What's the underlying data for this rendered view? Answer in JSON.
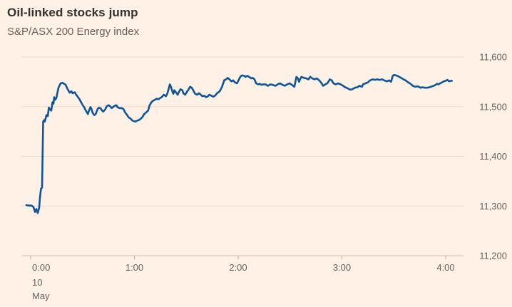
{
  "header": {
    "title": "Oil-linked stocks jump",
    "subtitle": "S&P/ASX 200 Energy index"
  },
  "colors": {
    "background": "#FFF1E5",
    "line": "#0F5499",
    "title_text": "#33302E",
    "subtitle_text": "#66605C",
    "axis_text": "#66605C",
    "gridline": "#E7DACF",
    "axis_line": "#D0C3B8",
    "tick_mark": "#B3AAA0"
  },
  "chart_data": {
    "type": "line",
    "title": "Oil-linked stocks jump",
    "subtitle": "S&P/ASX 200 Energy index",
    "grid": "horizontal",
    "legend": "none",
    "x_axis": {
      "tick_hours": [
        0,
        1,
        2,
        3,
        4
      ],
      "tick_labels": [
        "0:00",
        "1:00",
        "2:00",
        "3:00",
        "4:00"
      ],
      "date_label_lines": [
        "10",
        "May"
      ],
      "range_minutes": [
        -5,
        248
      ]
    },
    "y_axis": {
      "side": "right",
      "range": [
        11200,
        11600
      ],
      "ticks": [
        11200,
        11300,
        11400,
        11500,
        11600
      ],
      "tick_labels": [
        "11,200",
        "11,300",
        "11,400",
        "11,500",
        "11,600"
      ]
    },
    "series": [
      {
        "name": "S&P/ASX 200 Energy index",
        "points": [
          [
            -2.5,
            11302
          ],
          [
            -1.2,
            11301
          ],
          [
            0.4,
            11301
          ],
          [
            1.6,
            11298
          ],
          [
            2.5,
            11288
          ],
          [
            3.3,
            11294
          ],
          [
            4.1,
            11286
          ],
          [
            4.9,
            11296
          ],
          [
            5.3,
            11315
          ],
          [
            6.0,
            11335
          ],
          [
            6.6,
            11337
          ],
          [
            7.2,
            11470
          ],
          [
            7.8,
            11473
          ],
          [
            8.2,
            11470
          ],
          [
            9.1,
            11483
          ],
          [
            9.9,
            11481
          ],
          [
            10.5,
            11498
          ],
          [
            11.1,
            11495
          ],
          [
            11.9,
            11492
          ],
          [
            12.6,
            11509
          ],
          [
            13.2,
            11506
          ],
          [
            13.6,
            11519
          ],
          [
            14.2,
            11514
          ],
          [
            14.8,
            11517
          ],
          [
            16.1,
            11538
          ],
          [
            17.3,
            11547
          ],
          [
            18.5,
            11548
          ],
          [
            20.2,
            11544
          ],
          [
            21.4,
            11535
          ],
          [
            22.6,
            11528
          ],
          [
            23.5,
            11531
          ],
          [
            24.3,
            11527
          ],
          [
            25.5,
            11529
          ],
          [
            26.3,
            11524
          ],
          [
            27.0,
            11521
          ],
          [
            28.4,
            11514
          ],
          [
            29.6,
            11506
          ],
          [
            30.9,
            11499
          ],
          [
            32.1,
            11491
          ],
          [
            33.1,
            11485
          ],
          [
            33.7,
            11492
          ],
          [
            34.6,
            11499
          ],
          [
            35.2,
            11495
          ],
          [
            35.8,
            11488
          ],
          [
            36.8,
            11483
          ],
          [
            37.6,
            11485
          ],
          [
            38.7,
            11495
          ],
          [
            39.5,
            11498
          ],
          [
            40.3,
            11497
          ],
          [
            41.3,
            11492
          ],
          [
            42.0,
            11490
          ],
          [
            43.2,
            11495
          ],
          [
            44.0,
            11501
          ],
          [
            45.1,
            11503
          ],
          [
            45.9,
            11501
          ],
          [
            46.9,
            11497
          ],
          [
            48.6,
            11502
          ],
          [
            49.6,
            11503
          ],
          [
            50.2,
            11499
          ],
          [
            51.4,
            11497
          ],
          [
            52.7,
            11497
          ],
          [
            53.7,
            11495
          ],
          [
            54.7,
            11488
          ],
          [
            55.8,
            11483
          ],
          [
            56.8,
            11478
          ],
          [
            57.8,
            11476
          ],
          [
            58.8,
            11472
          ],
          [
            60.5,
            11470
          ],
          [
            61.7,
            11472
          ],
          [
            62.6,
            11473
          ],
          [
            63.8,
            11476
          ],
          [
            64.6,
            11479
          ],
          [
            65.6,
            11485
          ],
          [
            66.7,
            11488
          ],
          [
            67.9,
            11492
          ],
          [
            68.7,
            11502
          ],
          [
            69.8,
            11509
          ],
          [
            70.8,
            11512
          ],
          [
            72.0,
            11514
          ],
          [
            72.8,
            11516
          ],
          [
            73.9,
            11515
          ],
          [
            74.7,
            11517
          ],
          [
            75.7,
            11519
          ],
          [
            77.0,
            11524
          ],
          [
            78.2,
            11521
          ],
          [
            79.0,
            11526
          ],
          [
            80.5,
            11545
          ],
          [
            81.1,
            11540
          ],
          [
            81.9,
            11531
          ],
          [
            82.5,
            11526
          ],
          [
            83.1,
            11533
          ],
          [
            84.2,
            11528
          ],
          [
            85.0,
            11524
          ],
          [
            86.0,
            11531
          ],
          [
            86.6,
            11535
          ],
          [
            87.7,
            11533
          ],
          [
            88.3,
            11527
          ],
          [
            89.3,
            11524
          ],
          [
            90.6,
            11531
          ],
          [
            91.4,
            11535
          ],
          [
            92.2,
            11540
          ],
          [
            93.2,
            11538
          ],
          [
            94.3,
            11531
          ],
          [
            95.1,
            11526
          ],
          [
            96.3,
            11524
          ],
          [
            97.3,
            11527
          ],
          [
            98.4,
            11524
          ],
          [
            99.2,
            11521
          ],
          [
            100.4,
            11522
          ],
          [
            101.5,
            11519
          ],
          [
            102.5,
            11521
          ],
          [
            103.3,
            11524
          ],
          [
            104.5,
            11522
          ],
          [
            105.6,
            11520
          ],
          [
            106.6,
            11522
          ],
          [
            107.8,
            11527
          ],
          [
            109.3,
            11531
          ],
          [
            110.7,
            11540
          ],
          [
            111.9,
            11553
          ],
          [
            113.0,
            11555
          ],
          [
            114.0,
            11558
          ],
          [
            115.2,
            11554
          ],
          [
            116.1,
            11551
          ],
          [
            117.1,
            11553
          ],
          [
            118.1,
            11549
          ],
          [
            119.3,
            11547
          ],
          [
            120.2,
            11553
          ],
          [
            121.2,
            11560
          ],
          [
            122.2,
            11563
          ],
          [
            123.5,
            11562
          ],
          [
            124.3,
            11560
          ],
          [
            125.3,
            11562
          ],
          [
            126.3,
            11560
          ],
          [
            127.6,
            11557
          ],
          [
            128.4,
            11558
          ],
          [
            129.4,
            11555
          ],
          [
            130.4,
            11547
          ],
          [
            131.7,
            11545
          ],
          [
            132.5,
            11546
          ],
          [
            133.5,
            11544
          ],
          [
            134.6,
            11545
          ],
          [
            135.8,
            11545
          ],
          [
            137.2,
            11542
          ],
          [
            138.7,
            11545
          ],
          [
            139.9,
            11544
          ],
          [
            141.6,
            11542
          ],
          [
            142.8,
            11545
          ],
          [
            144.2,
            11547
          ],
          [
            145.7,
            11544
          ],
          [
            146.9,
            11542
          ],
          [
            148.4,
            11545
          ],
          [
            149.8,
            11547
          ],
          [
            151.0,
            11544
          ],
          [
            152.5,
            11540
          ],
          [
            153.7,
            11560
          ],
          [
            154.5,
            11557
          ],
          [
            155.2,
            11550
          ],
          [
            155.8,
            11555
          ],
          [
            156.6,
            11560
          ],
          [
            158.0,
            11558
          ],
          [
            159.3,
            11557
          ],
          [
            160.7,
            11555
          ],
          [
            161.7,
            11560
          ],
          [
            162.8,
            11557
          ],
          [
            164.2,
            11555
          ],
          [
            165.4,
            11557
          ],
          [
            166.9,
            11553
          ],
          [
            168.3,
            11547
          ],
          [
            169.1,
            11542
          ],
          [
            170.4,
            11545
          ],
          [
            171.6,
            11547
          ],
          [
            173.0,
            11555
          ],
          [
            174.1,
            11553
          ],
          [
            175.1,
            11547
          ],
          [
            176.5,
            11545
          ],
          [
            177.8,
            11547
          ],
          [
            179.2,
            11545
          ],
          [
            180.7,
            11542
          ],
          [
            181.9,
            11539
          ],
          [
            183.3,
            11537
          ],
          [
            184.8,
            11534
          ],
          [
            186.0,
            11535
          ],
          [
            187.5,
            11538
          ],
          [
            188.9,
            11539
          ],
          [
            190.1,
            11542
          ],
          [
            191.6,
            11540
          ],
          [
            192.2,
            11545
          ],
          [
            193.6,
            11547
          ],
          [
            195.1,
            11549
          ],
          [
            196.3,
            11553
          ],
          [
            197.7,
            11555
          ],
          [
            199.2,
            11554
          ],
          [
            200.4,
            11555
          ],
          [
            201.8,
            11554
          ],
          [
            203.3,
            11555
          ],
          [
            204.5,
            11553
          ],
          [
            205.9,
            11551
          ],
          [
            207.4,
            11553
          ],
          [
            208.4,
            11550
          ],
          [
            209.4,
            11562
          ],
          [
            210.1,
            11564
          ],
          [
            211.1,
            11563
          ],
          [
            212.1,
            11562
          ],
          [
            213.1,
            11560
          ],
          [
            214.2,
            11558
          ],
          [
            215.6,
            11555
          ],
          [
            216.8,
            11553
          ],
          [
            218.3,
            11549
          ],
          [
            219.7,
            11546
          ],
          [
            221.0,
            11542
          ],
          [
            222.4,
            11540
          ],
          [
            223.4,
            11541
          ],
          [
            224.5,
            11540
          ],
          [
            225.5,
            11538
          ],
          [
            226.5,
            11539
          ],
          [
            228.0,
            11538
          ],
          [
            229.2,
            11538
          ],
          [
            230.7,
            11539
          ],
          [
            232.1,
            11541
          ],
          [
            233.1,
            11542
          ],
          [
            234.2,
            11544
          ],
          [
            235.0,
            11546
          ],
          [
            235.8,
            11545
          ],
          [
            236.8,
            11547
          ],
          [
            237.9,
            11549
          ],
          [
            238.9,
            11551
          ],
          [
            239.9,
            11552
          ],
          [
            241.0,
            11554
          ],
          [
            242.0,
            11551
          ],
          [
            242.8,
            11552
          ],
          [
            243.6,
            11552
          ]
        ]
      }
    ]
  }
}
